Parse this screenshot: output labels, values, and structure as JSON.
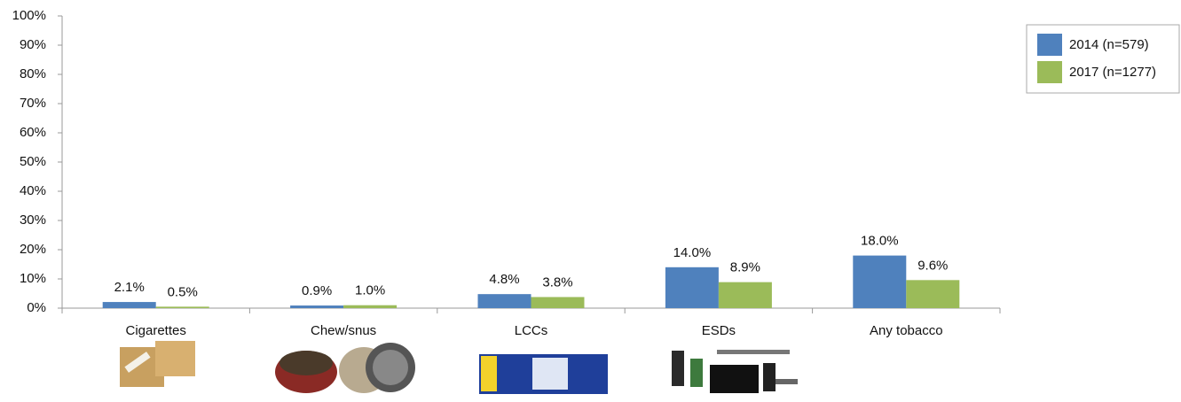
{
  "chart_data": {
    "type": "bar",
    "categories": [
      "Cigarettes",
      "Chew/snus",
      "LCCs",
      "ESDs",
      "Any tobacco"
    ],
    "series": [
      {
        "name": "2014 (n=579)",
        "color": "#4f81bd",
        "values": [
          2.1,
          0.9,
          4.8,
          14.0,
          18.0
        ],
        "value_labels": [
          "2.1%",
          "0.9%",
          "4.8%",
          "14.0%",
          "18.0%"
        ]
      },
      {
        "name": "2017 (n=1277)",
        "color": "#9bbb59",
        "values": [
          0.5,
          1.0,
          3.8,
          8.9,
          9.6
        ],
        "value_labels": [
          "0.5%",
          "1.0%",
          "3.8%",
          "8.9%",
          "9.6%"
        ]
      }
    ],
    "ylim": [
      0,
      100
    ],
    "yticks": [
      {
        "value": 0,
        "label": "0%"
      },
      {
        "value": 10,
        "label": "10%"
      },
      {
        "value": 20,
        "label": "20%"
      },
      {
        "value": 30,
        "label": "30%"
      },
      {
        "value": 40,
        "label": "40%"
      },
      {
        "value": 50,
        "label": "50%"
      },
      {
        "value": 60,
        "label": "60%"
      },
      {
        "value": 70,
        "label": "70%"
      },
      {
        "value": 80,
        "label": "80%"
      },
      {
        "value": 90,
        "label": "90%"
      },
      {
        "value": 100,
        "label": "100%"
      }
    ],
    "grid": false,
    "legend": "right"
  }
}
